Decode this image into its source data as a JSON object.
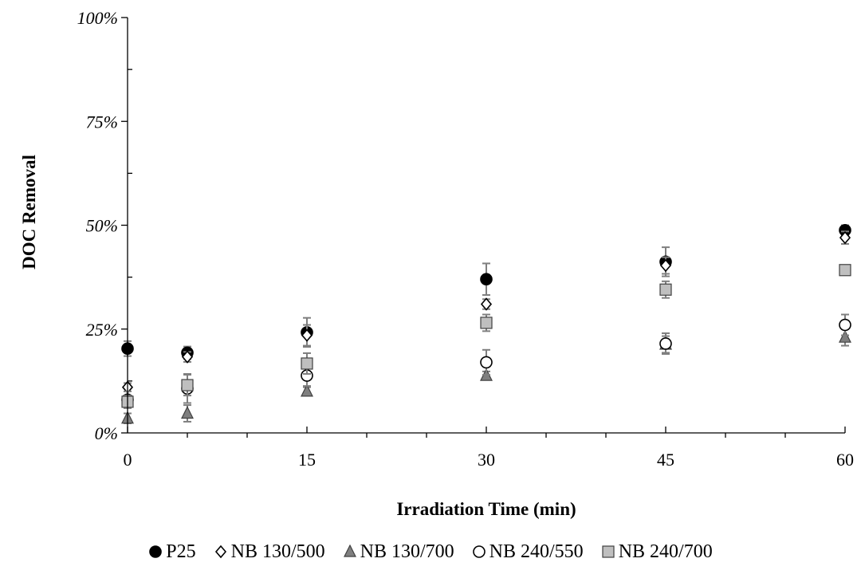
{
  "chart_data": {
    "type": "scatter",
    "xlabel": "Irradiation Time (min)",
    "ylabel": "DOC Removal",
    "x_ticks": [
      "0",
      "15",
      "30",
      "45",
      "60"
    ],
    "y_ticks": [
      "0%",
      "25%",
      "50%",
      "75%",
      "100%"
    ],
    "xlim": [
      0,
      60
    ],
    "ylim": [
      0,
      100
    ],
    "grid": false,
    "legend_position": "bottom",
    "series": [
      {
        "name": "P25",
        "marker": "circle-filled",
        "color": "#000000",
        "x": [
          0,
          5,
          15,
          30,
          45,
          60
        ],
        "y": [
          20.3,
          19.3,
          24.2,
          37.0,
          41.2,
          48.8
        ],
        "err": [
          1.8,
          1.5,
          3.5,
          3.8,
          3.5,
          1.2
        ]
      },
      {
        "name": "NB 130/500",
        "marker": "diamond-open",
        "color": "#000000",
        "x": [
          0,
          5,
          15,
          30,
          45,
          60
        ],
        "y": [
          11.0,
          18.3,
          23.5,
          31.0,
          40.3,
          47.0
        ],
        "err": [
          1.0,
          1.2,
          2.5,
          1.2,
          2.0,
          1.5
        ]
      },
      {
        "name": "NB 130/700",
        "marker": "triangle-filled",
        "color": "#7f7f7f",
        "x": [
          0,
          5,
          15,
          30,
          45,
          60
        ],
        "y": [
          3.5,
          4.7,
          10.0,
          13.8,
          21.3,
          23.0
        ],
        "err": [
          1.2,
          2.0,
          1.0,
          1.0,
          2.0,
          2.0
        ]
      },
      {
        "name": "NB 240/550",
        "marker": "circle-open",
        "color": "#000000",
        "x": [
          0,
          5,
          15,
          30,
          45,
          60
        ],
        "y": [
          8.0,
          10.7,
          13.8,
          17.0,
          21.5,
          26.0
        ],
        "err": [
          2.0,
          3.5,
          2.5,
          3.0,
          2.5,
          2.5
        ]
      },
      {
        "name": "NB 240/700",
        "marker": "square-filled",
        "color": "#bfbfbf",
        "x": [
          0,
          5,
          15,
          30,
          45,
          60
        ],
        "y": [
          7.5,
          11.5,
          16.7,
          26.5,
          34.5,
          39.2
        ],
        "err": [
          1.5,
          2.5,
          2.5,
          2.0,
          2.0,
          1.0
        ]
      }
    ]
  }
}
